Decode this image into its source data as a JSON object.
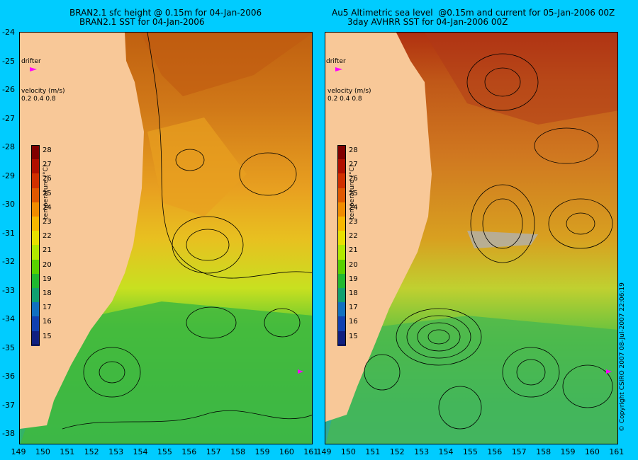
{
  "left": {
    "title_line1": "BRAN2.1 sfc height @ 0.15m for 04-Jan-2006",
    "title_line2": "BRAN2.1 SST for 04-Jan-2006",
    "drifter_label": "drifter",
    "velocity_label": "velocity (m/s)",
    "velocity_scale": "0.2 0.4 0.8"
  },
  "right": {
    "title_line1": "Au5 Altimetric sea level  @0.15m and current for 05-Jan-2006 00Z",
    "title_line2": "3day AVHRR SST for 04-Jan-2006 00Z",
    "drifter_label": "drifter",
    "velocity_label": "velocity (m/s)",
    "velocity_scale": "0.2 0.4 0.8"
  },
  "colorbar": {
    "title": "temperature (°C)",
    "ticks": [
      "28",
      "27",
      "26",
      "25",
      "24",
      "23",
      "22",
      "21",
      "20",
      "19",
      "18",
      "17",
      "16",
      "15"
    ]
  },
  "lat_ticks": [
    "-24",
    "-25",
    "-26",
    "-27",
    "-28",
    "-29",
    "-30",
    "-31",
    "-32",
    "-33",
    "-34",
    "-35",
    "-36",
    "-37",
    "-38"
  ],
  "lon_ticks_left": [
    "149",
    "150",
    "151",
    "152",
    "153",
    "154",
    "155",
    "156",
    "157",
    "158",
    "159",
    "160",
    "161"
  ],
  "lon_ticks_right": [
    "149",
    "150",
    "151",
    "152",
    "153",
    "154",
    "155",
    "156",
    "157",
    "158",
    "159",
    "160",
    "161"
  ],
  "copyright": "© Copyright CSIRO 2007 08-Jul-2007 22:06:19",
  "colors": {
    "background": "#00ccff",
    "land": "#f8c898",
    "drifter": "#ff00ff"
  }
}
